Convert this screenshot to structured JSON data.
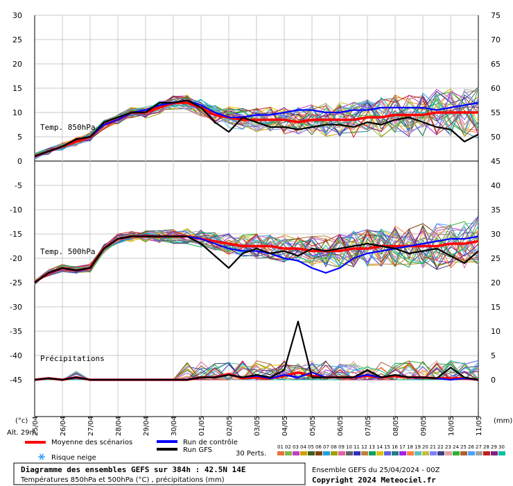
{
  "chart_data": {
    "type": "line",
    "title": "Diagramme des ensembles GEFS sur 384h : 42.5N 14E",
    "subtitle": "Températures 850hPa et 500hPa (°C) , précipitations (mm)",
    "run_label": "Ensemble GEFS du 25/04/2024 - 00Z",
    "copyright": "Copyright 2024 Meteociel.fr",
    "left_unit": "(°c)",
    "right_unit": "(mm)",
    "altitude": "Alt. 29m",
    "left_ticks": [
      "30",
      "25",
      "20",
      "15",
      "10",
      "5",
      "0",
      "-5",
      "-10",
      "-15",
      "-20",
      "-25",
      "-30",
      "-35",
      "-40",
      "-45"
    ],
    "right_ticks": [
      "75",
      "70",
      "65",
      "60",
      "55",
      "50",
      "45",
      "40",
      "35",
      "30",
      "25",
      "20",
      "15",
      "10",
      "5",
      "0"
    ],
    "x_ticks": [
      "25/04",
      "26/04",
      "27/04",
      "28/04",
      "29/04",
      "30/04",
      "01/05",
      "02/05",
      "03/05",
      "04/05",
      "05/05",
      "06/05",
      "07/05",
      "08/05",
      "09/05",
      "10/05",
      "11/05"
    ],
    "panel_labels": {
      "t850": "Temp. 850hPa",
      "t500": "Temp. 500hPa",
      "precip": "Précipitations"
    },
    "legend": {
      "mean": "Moyenne des scénarios",
      "control": "Run de contrôle",
      "gfs": "Run GFS",
      "snow": "Risque neige",
      "perts": "30 Perts."
    },
    "colors": {
      "mean": "#ff0000",
      "control": "#0000ff",
      "gfs": "#000000"
    },
    "pert_labels": [
      "01",
      "02",
      "03",
      "04",
      "05",
      "06",
      "07",
      "08",
      "09",
      "10",
      "11",
      "12",
      "13",
      "14",
      "15",
      "16",
      "17",
      "18",
      "19",
      "20",
      "21",
      "22",
      "23",
      "24",
      "25",
      "26",
      "27",
      "28",
      "29",
      "30"
    ],
    "pert_colors": [
      "#e8703a",
      "#7fb84a",
      "#c040c0",
      "#d0a000",
      "#406020",
      "#804000",
      "#20a0e0",
      "#a0a000",
      "#e060a0",
      "#606060",
      "#3030c0",
      "#c08040",
      "#10a060",
      "#e0c000",
      "#6060e0",
      "#208080",
      "#a020f0",
      "#ff8040",
      "#60c0c0",
      "#c0c040",
      "#8080ff",
      "#404080",
      "#e0a0a0",
      "#30b030",
      "#b06030",
      "#50a0ff",
      "#a0a0a0",
      "#c02020",
      "#802080",
      "#00c0a0"
    ],
    "series": [
      {
        "name": "Moyenne des scénarios",
        "panel": "t850",
        "x": [
          0,
          0.5,
          1,
          1.5,
          2,
          2.5,
          3,
          3.5,
          4,
          4.5,
          5,
          5.5,
          6,
          6.5,
          7,
          7.5,
          8,
          8.5,
          9,
          9.5,
          10,
          10.5,
          11,
          11.5,
          12,
          12.5,
          13,
          13.5,
          14,
          14.5,
          15,
          15.5,
          16
        ],
        "y": [
          1,
          2,
          3,
          4,
          5,
          7.5,
          8.5,
          10,
          10,
          11,
          12,
          12,
          11,
          9.5,
          9,
          8.5,
          8.5,
          8.5,
          8.5,
          8,
          8.5,
          8.5,
          8.5,
          8.5,
          9,
          9,
          9.5,
          9.5,
          9.5,
          10,
          10,
          10,
          10
        ]
      },
      {
        "name": "Run de contrôle",
        "panel": "t850",
        "x": [
          0,
          0.5,
          1,
          1.5,
          2,
          2.5,
          3,
          3.5,
          4,
          4.5,
          5,
          5.5,
          6,
          6.5,
          7,
          7.5,
          8,
          8.5,
          9,
          9.5,
          10,
          10.5,
          11,
          11.5,
          12,
          12.5,
          13,
          13.5,
          14,
          14.5,
          15,
          15.5,
          16
        ],
        "y": [
          1,
          2,
          3,
          4.5,
          5,
          7.5,
          8.5,
          10,
          10.5,
          11.5,
          12,
          12.5,
          11.5,
          10,
          9,
          9,
          9.5,
          9.5,
          10,
          10.5,
          10.5,
          10,
          10,
          10.5,
          10.5,
          11,
          11,
          11,
          11,
          10.5,
          11,
          11.5,
          12
        ]
      },
      {
        "name": "Run GFS",
        "panel": "t850",
        "x": [
          0,
          0.5,
          1,
          1.5,
          2,
          2.5,
          3,
          3.5,
          4,
          4.5,
          5,
          5.5,
          6,
          6.5,
          7,
          7.5,
          8,
          8.5,
          9,
          9.5,
          10,
          10.5,
          11,
          11.5,
          12,
          12.5,
          13,
          13.5,
          14,
          14.5,
          15,
          15.5,
          16
        ],
        "y": [
          1,
          2,
          3,
          4.5,
          5,
          8,
          9,
          10,
          10,
          12,
          12,
          12.5,
          11,
          8,
          6,
          9,
          8,
          7,
          7,
          6.5,
          7,
          7.5,
          7.5,
          7,
          8,
          7.5,
          8.5,
          9,
          8,
          7,
          6.5,
          4,
          5.5
        ]
      },
      {
        "name": "Moyenne des scénarios",
        "panel": "t500",
        "x": [
          0,
          0.5,
          1,
          1.5,
          2,
          2.5,
          3,
          3.5,
          4,
          4.5,
          5,
          5.5,
          6,
          6.5,
          7,
          7.5,
          8,
          8.5,
          9,
          9.5,
          10,
          10.5,
          11,
          11.5,
          12,
          12.5,
          13,
          13.5,
          14,
          14.5,
          15,
          15.5,
          16
        ],
        "y": [
          -25,
          -23,
          -22,
          -22.5,
          -22,
          -18,
          -16,
          -15.5,
          -15.5,
          -15.5,
          -15.5,
          -15.5,
          -16,
          -16.5,
          -17,
          -17.5,
          -17.5,
          -17.5,
          -18,
          -18,
          -18.5,
          -18.5,
          -18.5,
          -18,
          -18,
          -17.5,
          -17.5,
          -17.5,
          -17.5,
          -17.5,
          -17,
          -17,
          -16.5
        ]
      },
      {
        "name": "Run de contrôle",
        "panel": "t500",
        "x": [
          0,
          0.5,
          1,
          1.5,
          2,
          2.5,
          3,
          3.5,
          4,
          4.5,
          5,
          5.5,
          6,
          6.5,
          7,
          7.5,
          8,
          8.5,
          9,
          9.5,
          10,
          10.5,
          11,
          11.5,
          12,
          12.5,
          13,
          13.5,
          14,
          14.5,
          15,
          15.5,
          16
        ],
        "y": [
          -25,
          -23,
          -22,
          -22.5,
          -22,
          -18,
          -16,
          -15.5,
          -15.5,
          -15.5,
          -15.5,
          -15.5,
          -16,
          -17,
          -18,
          -18.5,
          -18.5,
          -19,
          -20,
          -20.5,
          -22,
          -23,
          -22,
          -20,
          -19,
          -18.5,
          -18,
          -17.5,
          -17,
          -16.5,
          -16,
          -16,
          -15.5
        ]
      },
      {
        "name": "Run GFS",
        "panel": "t500",
        "x": [
          0,
          0.5,
          1,
          1.5,
          2,
          2.5,
          3,
          3.5,
          4,
          4.5,
          5,
          5.5,
          6,
          6.5,
          7,
          7.5,
          8,
          8.5,
          9,
          9.5,
          10,
          10.5,
          11,
          11.5,
          12,
          12.5,
          13,
          13.5,
          14,
          14.5,
          15,
          15.5,
          16
        ],
        "y": [
          -25,
          -23,
          -22,
          -22.5,
          -22,
          -18,
          -16,
          -15.5,
          -15.5,
          -15.5,
          -15.5,
          -15.5,
          -17,
          -19.5,
          -22,
          -19,
          -18,
          -19,
          -18.5,
          -19.5,
          -18,
          -18.5,
          -18,
          -17.5,
          -17,
          -17.5,
          -18,
          -19,
          -18.5,
          -18,
          -19.5,
          -21,
          -18.5
        ]
      },
      {
        "name": "Moyenne des scénarios",
        "panel": "precip",
        "x": [
          0,
          0.5,
          1,
          1.5,
          2,
          2.5,
          3,
          3.5,
          4,
          4.5,
          5,
          5.5,
          6,
          6.5,
          7,
          7.5,
          8,
          8.5,
          9,
          9.5,
          10,
          10.5,
          11,
          11.5,
          12,
          12.5,
          13,
          13.5,
          14,
          14.5,
          15,
          15.5,
          16
        ],
        "y": [
          0,
          0.3,
          0,
          0.5,
          0,
          0,
          0,
          0,
          0,
          0,
          0,
          0,
          0.5,
          0.5,
          1.2,
          0.3,
          0.5,
          0.3,
          0.8,
          1.5,
          0.8,
          0.5,
          0.5,
          0.5,
          0.8,
          0.5,
          0.8,
          0.5,
          0.5,
          0.3,
          0.3,
          0.3,
          0
        ]
      },
      {
        "name": "Run de contrôle",
        "panel": "precip",
        "x": [
          0,
          0.5,
          1,
          1.5,
          2,
          2.5,
          3,
          3.5,
          4,
          4.5,
          5,
          5.5,
          6,
          6.5,
          7,
          7.5,
          8,
          8.5,
          9,
          9.5,
          10,
          10.5,
          11,
          11.5,
          12,
          12.5,
          13,
          13.5,
          14,
          14.5,
          15,
          15.5,
          16
        ],
        "y": [
          0,
          0.3,
          0,
          0.5,
          0,
          0,
          0,
          0,
          0,
          0,
          0,
          0,
          0.5,
          0.5,
          1,
          0.5,
          0.8,
          0.3,
          1,
          0.5,
          1.5,
          0.5,
          0.5,
          0.5,
          1,
          0.5,
          1,
          0.5,
          0.5,
          0.3,
          0,
          0.3,
          0
        ]
      },
      {
        "name": "Run GFS",
        "panel": "precip",
        "x": [
          0,
          0.5,
          1,
          1.5,
          2,
          2.5,
          3,
          3.5,
          4,
          4.5,
          5,
          5.5,
          6,
          6.5,
          7,
          7.5,
          8,
          8.5,
          9,
          9.5,
          10,
          10.5,
          11,
          11.5,
          12,
          12.5,
          13,
          13.5,
          14,
          14.5,
          15,
          15.5,
          16
        ],
        "y": [
          0,
          0.3,
          0,
          0.5,
          0,
          0,
          0,
          0,
          0,
          0,
          0,
          0,
          0.5,
          0.5,
          1,
          0.5,
          1,
          0.5,
          2,
          12,
          0.5,
          0.5,
          0.5,
          0.5,
          2,
          0.5,
          1,
          0.5,
          0.5,
          0.3,
          2.5,
          0.5,
          0
        ]
      }
    ],
    "precip_max": 15,
    "temp_range": [
      -45,
      30
    ],
    "x_range": [
      0,
      16
    ]
  }
}
